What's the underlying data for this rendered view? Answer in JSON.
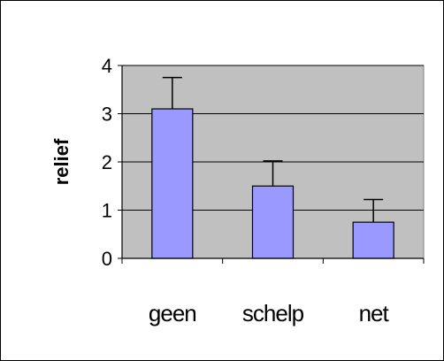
{
  "chart_data": {
    "type": "bar",
    "categories": [
      "geen",
      "schelp",
      "net"
    ],
    "values": [
      3.1,
      1.5,
      0.75
    ],
    "error_upper": [
      3.75,
      2.02,
      1.22
    ],
    "title": "",
    "xlabel": "",
    "ylabel": "relief",
    "ylim": [
      0,
      4
    ],
    "yticks": [
      "0",
      "1",
      "2",
      "3",
      "4"
    ],
    "grid": true,
    "legend": "none",
    "colors": {
      "bar_fill": "#9999ff",
      "plot_background": "#c0c0c0",
      "grid": "#000000"
    }
  }
}
